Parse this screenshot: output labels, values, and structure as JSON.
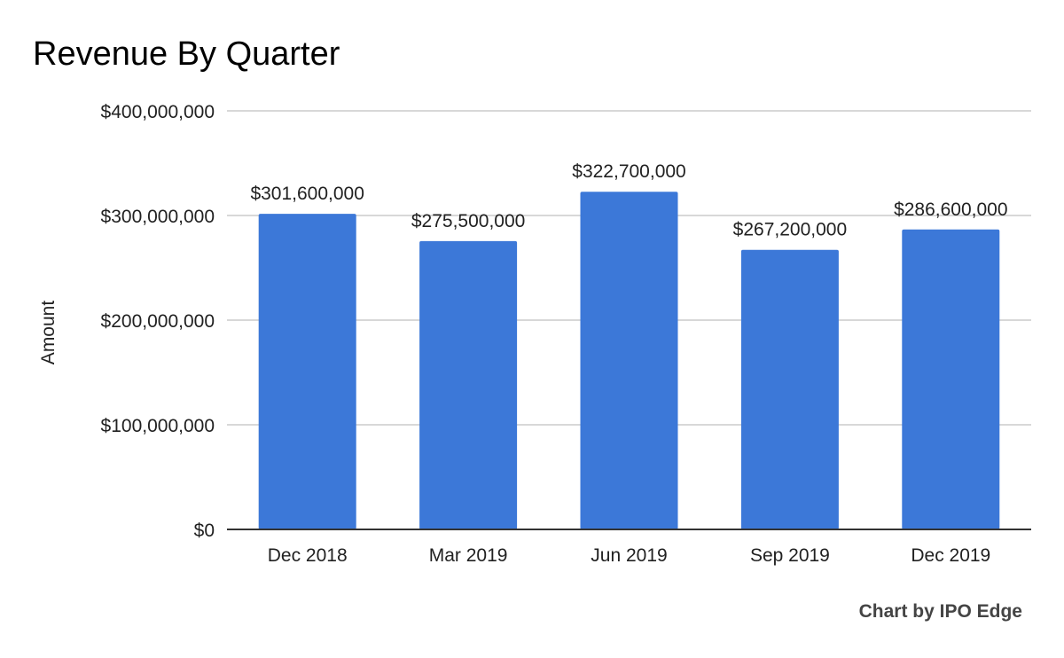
{
  "title": "Revenue By Quarter",
  "credit": "Chart by IPO Edge",
  "colors": {
    "bar": "#3c78d8",
    "grid": "#cccccc",
    "axis": "#333333",
    "text": "#212121"
  },
  "chart_data": {
    "type": "bar",
    "title": "Revenue By Quarter",
    "xlabel": "",
    "ylabel": "Amount",
    "categories": [
      "Dec 2018",
      "Mar 2019",
      "Jun 2019",
      "Sep 2019",
      "Dec 2019"
    ],
    "values": [
      301600000,
      275500000,
      322700000,
      267200000,
      286600000
    ],
    "data_labels": [
      "$301,600,000",
      "$275,500,000",
      "$322,700,000",
      "$267,200,000",
      "$286,600,000"
    ],
    "ylim": [
      0,
      400000000
    ],
    "yticks": [
      0,
      100000000,
      200000000,
      300000000,
      400000000
    ],
    "ytick_labels": [
      "$0",
      "$100,000,000",
      "$200,000,000",
      "$300,000,000",
      "$400,000,000"
    ],
    "grid": true,
    "legend": "none"
  }
}
